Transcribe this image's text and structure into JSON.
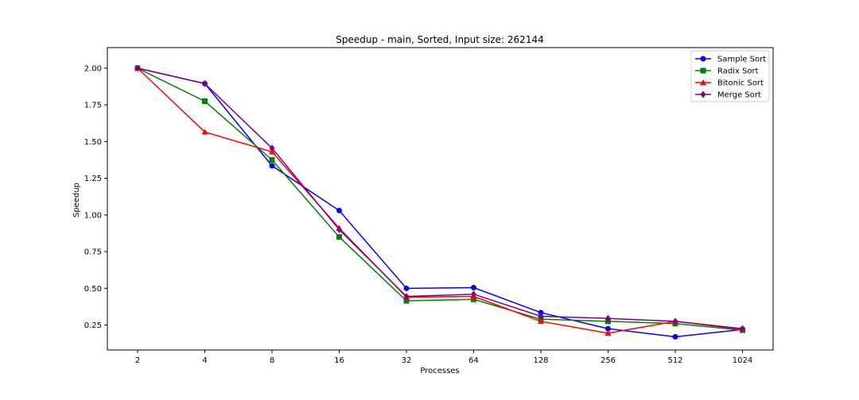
{
  "chart_data": {
    "type": "line",
    "title": "Speedup - main, Sorted, Input size: 262144",
    "xlabel": "Processes",
    "ylabel": "Speedup",
    "x": [
      "2",
      "4",
      "8",
      "16",
      "32",
      "64",
      "128",
      "256",
      "512",
      "1024"
    ],
    "ylim": [
      0.08,
      2.14
    ],
    "yticks": [
      "0.25",
      "0.50",
      "0.75",
      "1.00",
      "1.25",
      "1.50",
      "1.75",
      "2.00"
    ],
    "grid": false,
    "legend_position": "top-right",
    "series": [
      {
        "name": "Sample Sort",
        "color": "#0000ff",
        "marker": "circle",
        "values": [
          2.0,
          1.895,
          1.335,
          1.03,
          0.5,
          0.505,
          0.335,
          0.225,
          0.17,
          0.22
        ]
      },
      {
        "name": "Radix Sort",
        "color": "#008000",
        "marker": "square",
        "values": [
          2.0,
          1.775,
          1.375,
          0.85,
          0.415,
          0.425,
          0.29,
          0.275,
          0.26,
          0.215
        ]
      },
      {
        "name": "Bitonic Sort",
        "color": "#ff0000",
        "marker": "triangle",
        "values": [
          2.0,
          1.565,
          1.43,
          0.91,
          0.44,
          0.445,
          0.275,
          0.195,
          0.275,
          0.22
        ]
      },
      {
        "name": "Merge Sort",
        "color": "#800080",
        "marker": "diamond",
        "values": [
          2.0,
          1.895,
          1.455,
          0.9,
          0.445,
          0.46,
          0.31,
          0.295,
          0.275,
          0.225
        ]
      }
    ]
  }
}
